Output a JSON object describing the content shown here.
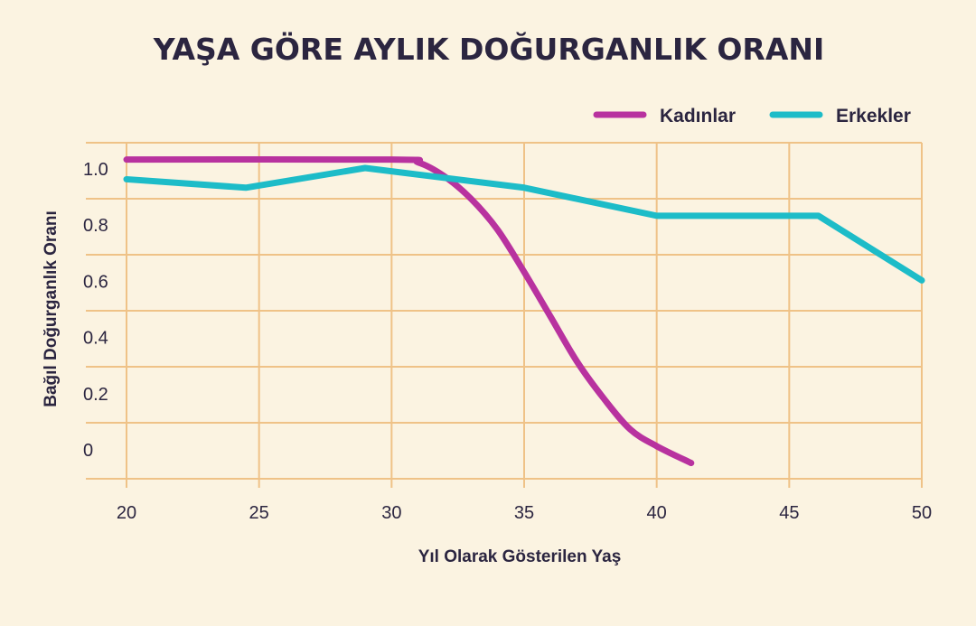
{
  "chart_data": {
    "type": "line",
    "title": "YAŞA GÖRE AYLIK DOĞURGANLIK ORANI",
    "xlabel": "Yıl Olarak Gösterilen Yaş",
    "ylabel": "Bağıl Doğurganlık Oranı",
    "xlim": [
      20,
      50
    ],
    "ylim": [
      -0.1,
      1.1
    ],
    "x_ticks": [
      "20",
      "25",
      "30",
      "35",
      "40",
      "45",
      "50"
    ],
    "y_ticks": [
      "1.0",
      "0.8",
      "0.6",
      "0.4",
      "0.2",
      "0"
    ],
    "grid": true,
    "legend_position": "top-right",
    "series": [
      {
        "name": "Kadınlar",
        "color": "#b8329f",
        "x": [
          20,
          30,
          31,
          32,
          33,
          34,
          35,
          36,
          37,
          38,
          39,
          40,
          41.3
        ],
        "y": [
          1.03,
          1.03,
          1.02,
          0.97,
          0.89,
          0.78,
          0.63,
          0.47,
          0.31,
          0.18,
          0.07,
          0.01,
          -0.05
        ]
      },
      {
        "name": "Erkekler",
        "color": "#1dbcc8",
        "x": [
          20,
          24.5,
          29,
          35,
          40,
          46.1,
          50
        ],
        "y": [
          0.96,
          0.93,
          1.0,
          0.93,
          0.83,
          0.83,
          0.6
        ]
      }
    ]
  }
}
